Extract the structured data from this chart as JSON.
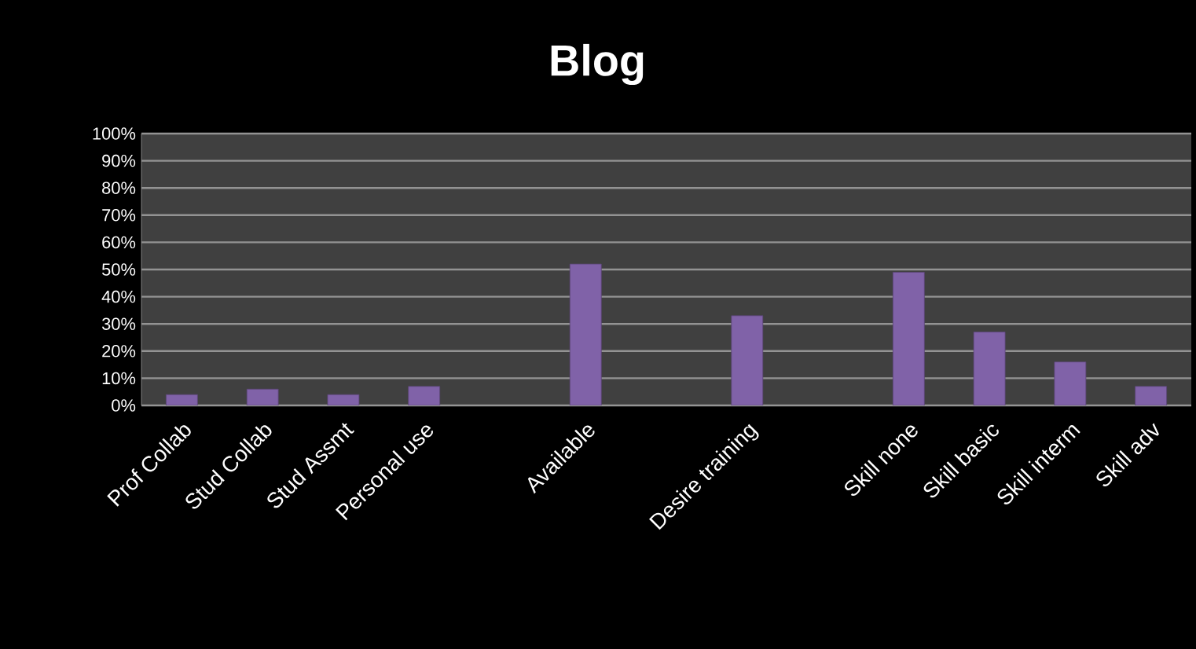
{
  "chart_data": {
    "type": "bar",
    "title": "Blog",
    "categories": [
      "Prof Collab",
      "Stud Collab",
      "Stud Assmt",
      "Personal use",
      null,
      "Available",
      null,
      "Desire training",
      null,
      "Skill none",
      "Skill basic",
      "Skill interm",
      "Skill adv"
    ],
    "values": [
      4,
      6,
      4,
      7,
      null,
      52,
      null,
      33,
      null,
      49,
      27,
      16,
      7
    ],
    "color": "#8062a8",
    "ylim": [
      0,
      100
    ],
    "yticks": [
      {
        "value": 0,
        "label": "0%"
      },
      {
        "value": 10,
        "label": "10%"
      },
      {
        "value": 20,
        "label": "20%"
      },
      {
        "value": 30,
        "label": "30%"
      },
      {
        "value": 40,
        "label": "40%"
      },
      {
        "value": 50,
        "label": "50%"
      },
      {
        "value": 60,
        "label": "60%"
      },
      {
        "value": 70,
        "label": "70%"
      },
      {
        "value": 80,
        "label": "80%"
      },
      {
        "value": 90,
        "label": "90%"
      },
      {
        "value": 100,
        "label": "100%"
      }
    ],
    "grid": "y"
  }
}
